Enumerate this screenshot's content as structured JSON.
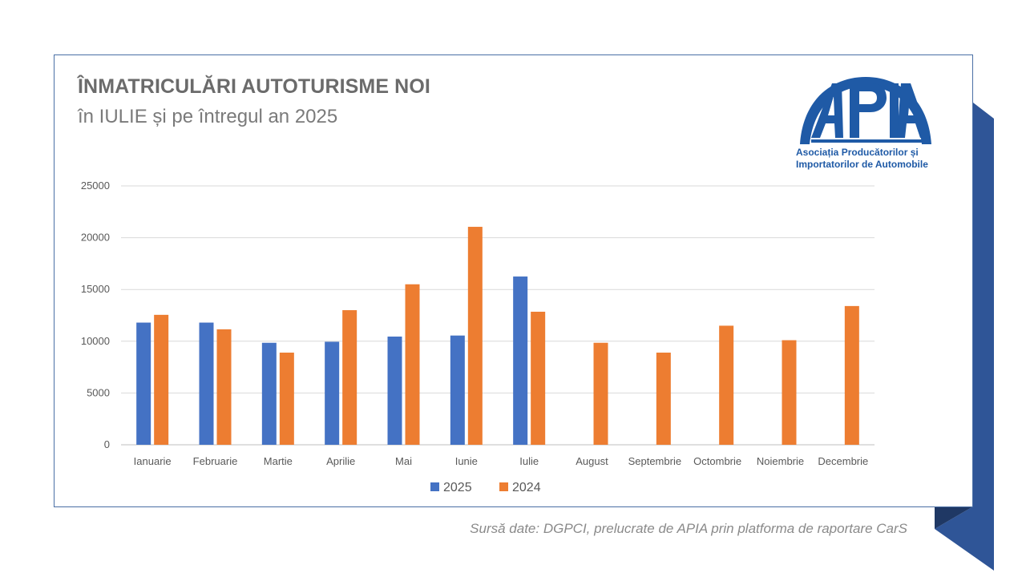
{
  "header": {
    "title": "ÎNMATRICULĂRI AUTOTURISME NOI",
    "subtitle": "în IULIE și pe întregul an 2025"
  },
  "logo": {
    "text": "APIA",
    "tagline_line1": "Asociația Producătorilor și",
    "tagline_line2": "Importatorilor de Automobile",
    "color": "#1f5aa6"
  },
  "source": "Sursă date: DGPCI, prelucrate de APIA prin platforma de raportare CarS",
  "colors": {
    "series_2025": "#4472c4",
    "series_2024": "#ed7d31",
    "frame": "#4a6fa5",
    "decoration_light": "#2f5597",
    "decoration_dark": "#1f3864"
  },
  "chart_data": {
    "type": "bar",
    "title": "",
    "xlabel": "",
    "ylabel": "",
    "categories": [
      "Ianuarie",
      "Februarie",
      "Martie",
      "Aprilie",
      "Mai",
      "Iunie",
      "Iulie",
      "August",
      "Septembrie",
      "Octombrie",
      "Noiembrie",
      "Decembrie"
    ],
    "series": [
      {
        "name": "2025",
        "color": "#4472c4",
        "values": [
          11800,
          11800,
          9850,
          9950,
          10450,
          10550,
          16250,
          null,
          null,
          null,
          null,
          null
        ]
      },
      {
        "name": "2024",
        "color": "#ed7d31",
        "values": [
          12550,
          11150,
          8900,
          13000,
          15500,
          21050,
          12850,
          9850,
          8900,
          11500,
          10100,
          13400
        ]
      }
    ],
    "ylim": [
      0,
      25000
    ],
    "yticks": [
      0,
      5000,
      10000,
      15000,
      20000,
      25000
    ],
    "grid": true,
    "legend_position": "bottom"
  }
}
